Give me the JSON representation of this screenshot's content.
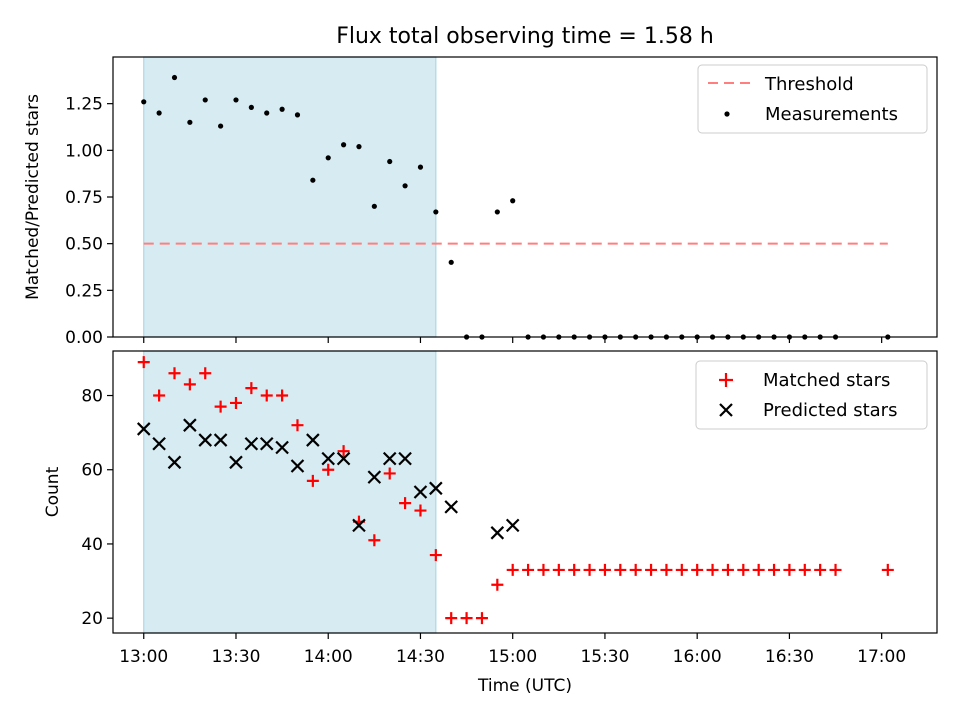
{
  "chart_data": [
    {
      "type": "scatter",
      "title": "Flux total observing time = 1.58 h",
      "xlabel": "",
      "ylabel": "Matched/Predicted stars",
      "xlim": [
        -10,
        258
      ],
      "ylim": [
        0,
        1.5
      ],
      "xticks": [
        0,
        30,
        60,
        90,
        120,
        150,
        180,
        210,
        240
      ],
      "yticks": [
        0.0,
        0.25,
        0.5,
        0.75,
        1.0,
        1.25
      ],
      "ytick_labels": [
        "0.00",
        "0.25",
        "0.50",
        "0.75",
        "1.00",
        "1.25"
      ],
      "shaded_span": [
        0,
        95
      ],
      "threshold": {
        "label": "Threshold",
        "value": 0.5,
        "x_range": [
          0,
          242
        ],
        "color": "#ff7f7f"
      },
      "series": [
        {
          "name": "Measurements",
          "marker": "dot",
          "color": "#000000",
          "x": [
            0,
            5,
            10,
            15,
            20,
            25,
            30,
            35,
            40,
            45,
            50,
            55,
            60,
            65,
            70,
            75,
            80,
            85,
            90,
            95,
            100,
            105,
            110,
            115,
            120,
            125,
            130,
            135,
            140,
            145,
            150,
            155,
            160,
            165,
            170,
            175,
            180,
            185,
            190,
            195,
            200,
            205,
            210,
            215,
            220,
            225,
            242
          ],
          "y": [
            1.26,
            1.2,
            1.39,
            1.15,
            1.27,
            1.13,
            1.27,
            1.23,
            1.2,
            1.22,
            1.19,
            0.84,
            0.96,
            1.03,
            1.02,
            0.7,
            0.94,
            0.81,
            0.91,
            0.67,
            0.4,
            0,
            0,
            0.67,
            0.73,
            0,
            0,
            0,
            0,
            0,
            0,
            0,
            0,
            0,
            0,
            0,
            0,
            0,
            0,
            0,
            0,
            0,
            0,
            0,
            0,
            0,
            0
          ]
        }
      ],
      "legend": {
        "position": "top-right",
        "entries": [
          "Threshold",
          "Measurements"
        ]
      }
    },
    {
      "type": "scatter",
      "xlabel": "Time (UTC)",
      "ylabel": "Count",
      "xlim": [
        -10,
        258
      ],
      "ylim": [
        16,
        92
      ],
      "xticks": [
        0,
        30,
        60,
        90,
        120,
        150,
        180,
        210,
        240
      ],
      "xtick_labels": [
        "13:00",
        "13:30",
        "14:00",
        "14:30",
        "15:00",
        "15:30",
        "16:00",
        "16:30",
        "17:00"
      ],
      "yticks": [
        20,
        40,
        60,
        80
      ],
      "ytick_labels": [
        "20",
        "40",
        "60",
        "80"
      ],
      "shaded_span": [
        0,
        95
      ],
      "series": [
        {
          "name": "Matched stars",
          "marker": "plus",
          "color": "#ff0000",
          "x": [
            0,
            5,
            10,
            15,
            20,
            25,
            30,
            35,
            40,
            45,
            50,
            55,
            60,
            65,
            70,
            75,
            80,
            85,
            90,
            95,
            100,
            105,
            110,
            115,
            120,
            125,
            130,
            135,
            140,
            145,
            150,
            155,
            160,
            165,
            170,
            175,
            180,
            185,
            190,
            195,
            200,
            205,
            210,
            215,
            220,
            225,
            242
          ],
          "y": [
            89,
            80,
            86,
            83,
            86,
            77,
            78,
            82,
            80,
            80,
            72,
            57,
            60,
            65,
            46,
            41,
            59,
            51,
            49,
            37,
            20,
            20,
            20,
            29,
            33,
            33,
            33,
            33,
            33,
            33,
            33,
            33,
            33,
            33,
            33,
            33,
            33,
            33,
            33,
            33,
            33,
            33,
            33,
            33,
            33,
            33,
            33
          ]
        },
        {
          "name": "Predicted stars",
          "marker": "x",
          "color": "#000000",
          "x": [
            0,
            5,
            10,
            15,
            20,
            25,
            30,
            35,
            40,
            45,
            50,
            55,
            60,
            65,
            70,
            75,
            80,
            85,
            90,
            95,
            100,
            115,
            120
          ],
          "y": [
            71,
            67,
            62,
            72,
            68,
            68,
            62,
            67,
            67,
            66,
            61,
            68,
            63,
            63,
            45,
            58,
            63,
            63,
            54,
            55,
            50,
            43,
            45
          ]
        }
      ],
      "legend": {
        "position": "top-right",
        "entries": [
          "Matched stars",
          "Predicted stars"
        ]
      }
    }
  ]
}
